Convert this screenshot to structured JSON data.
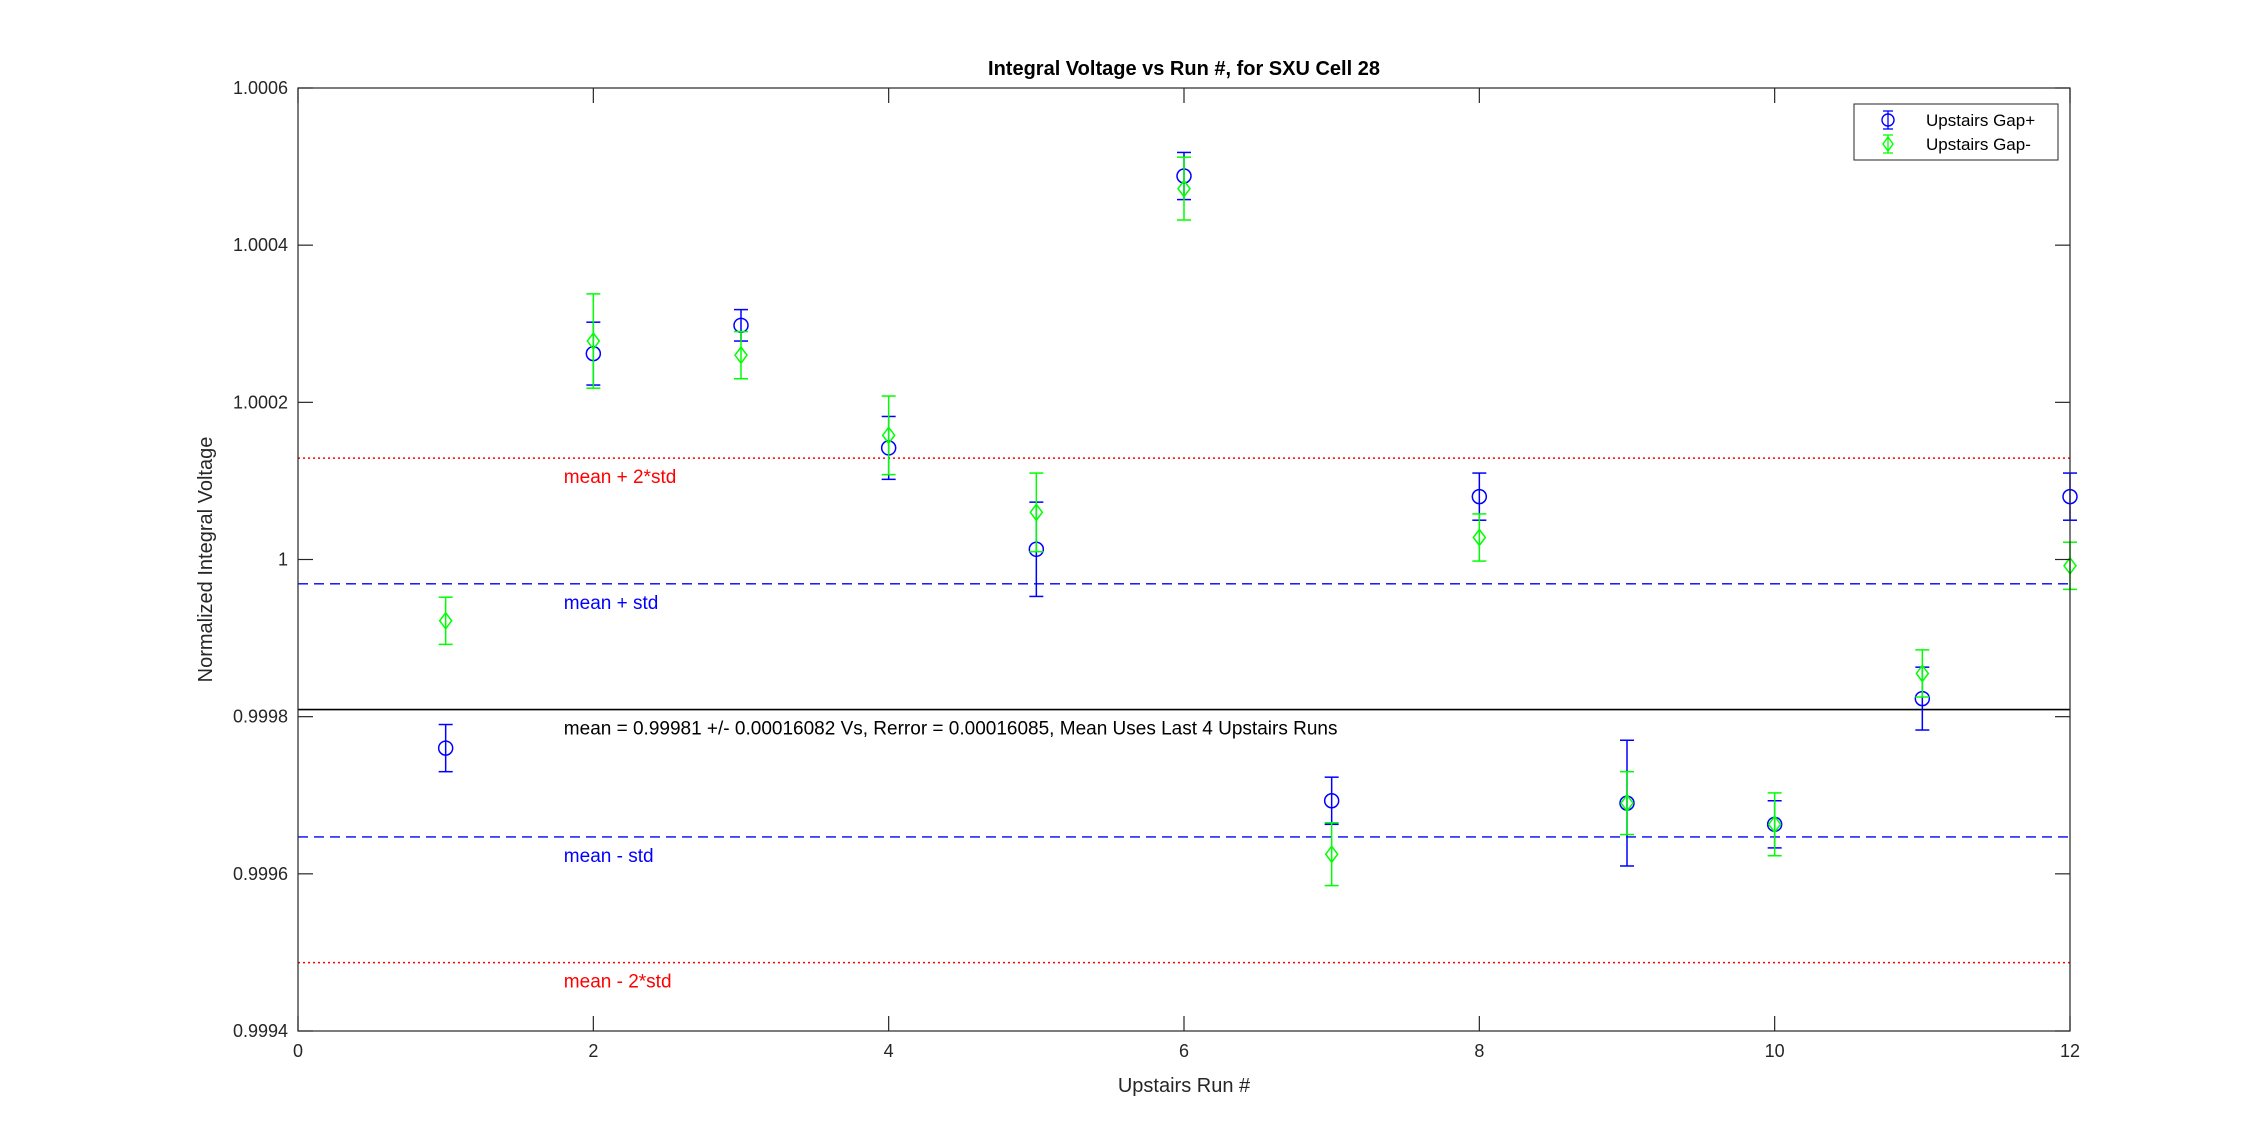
{
  "chart_data": {
    "type": "scatter",
    "title": "Integral Voltage vs Run #, for SXU Cell 28",
    "xlabel": "Upstairs Run #",
    "ylabel": "Normalized Integral Voltage",
    "xlim": [
      0,
      12
    ],
    "ylim": [
      0.9994,
      1.0006
    ],
    "xticks": [
      0,
      2,
      4,
      6,
      8,
      10,
      12
    ],
    "xtick_labels": [
      "0",
      "2",
      "4",
      "6",
      "8",
      "10",
      "12"
    ],
    "yticks": [
      0.9994,
      0.9996,
      0.9998,
      1.0,
      1.0002,
      1.0004,
      1.0006
    ],
    "ytick_labels": [
      "0.9994",
      "0.9996",
      "0.9998",
      "1",
      "1.0002",
      "1.0004",
      "1.0006"
    ],
    "grid": false,
    "legend_position": "top-right",
    "series": [
      {
        "name": "Upstairs Gap+",
        "marker": "circle",
        "color": "#0000ff",
        "x": [
          1,
          2,
          3,
          4,
          5,
          6,
          7,
          8,
          9,
          10,
          11,
          12
        ],
        "y": [
          0.99976,
          1.000262,
          1.000298,
          1.000142,
          1.000013,
          1.000488,
          0.999693,
          1.00008,
          0.99969,
          0.999663,
          0.999823,
          1.00008
        ],
        "err": [
          3e-05,
          4e-05,
          2e-05,
          4e-05,
          6e-05,
          3e-05,
          3e-05,
          3e-05,
          8e-05,
          3e-05,
          4e-05,
          3e-05
        ]
      },
      {
        "name": "Upstairs Gap-",
        "marker": "diamond",
        "color": "#00ff00",
        "x": [
          1,
          2,
          3,
          4,
          5,
          6,
          7,
          8,
          9,
          10,
          11,
          12
        ],
        "y": [
          0.999922,
          1.000278,
          1.00026,
          1.000158,
          1.00006,
          1.000472,
          0.999625,
          1.000028,
          0.99969,
          0.999663,
          0.999855,
          0.999992
        ],
        "err": [
          3e-05,
          6e-05,
          3e-05,
          5e-05,
          5e-05,
          4e-05,
          4e-05,
          3e-05,
          4e-05,
          4e-05,
          3e-05,
          3e-05
        ]
      }
    ],
    "reference_lines": [
      {
        "y": 1.000129,
        "style": "dotted",
        "color": "#ff0000",
        "label": "mean + 2*std"
      },
      {
        "y": 0.999969,
        "style": "dashed",
        "color": "#0000ff",
        "label": "mean + std"
      },
      {
        "y": 0.999809,
        "style": "solid",
        "color": "#000000",
        "label": "mean = 0.99981 +/- 0.00016082 Vs, Rerror = 0.00016085, Mean Uses Last 4 Upstairs Runs"
      },
      {
        "y": 0.999647,
        "style": "dashed",
        "color": "#0000ff",
        "label": "mean - std"
      },
      {
        "y": 0.999487,
        "style": "dotted",
        "color": "#ff0000",
        "label": "mean - 2*std"
      }
    ]
  }
}
